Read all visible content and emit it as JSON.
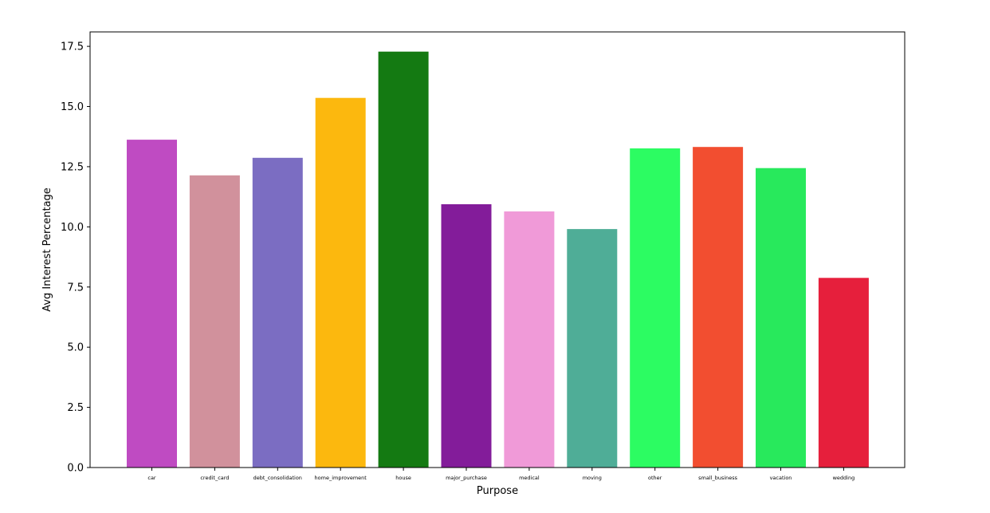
{
  "chart_data": {
    "type": "bar",
    "title": "",
    "xlabel": "Purpose",
    "ylabel": "Avg Interest Percentage",
    "ylim": [
      0,
      18.1
    ],
    "yticks": [
      0.0,
      2.5,
      5.0,
      7.5,
      10.0,
      12.5,
      15.0,
      17.5
    ],
    "ytick_labels": [
      "0.0",
      "2.5",
      "5.0",
      "7.5",
      "10.0",
      "12.5",
      "15.0",
      "17.5"
    ],
    "grid": false,
    "categories": [
      "car",
      "credit_card",
      "debt_consolidation",
      "home_improvement",
      "house",
      "major_purchase",
      "medical",
      "moving",
      "other",
      "small_business",
      "vacation",
      "wedding"
    ],
    "values": [
      13.62,
      12.14,
      12.87,
      15.36,
      17.28,
      10.94,
      10.64,
      9.91,
      13.26,
      13.32,
      12.44,
      7.88
    ],
    "colors": [
      "#bf4bc2",
      "#d1919c",
      "#7b6dc2",
      "#fcb80e",
      "#147a12",
      "#831c9a",
      "#f09ad8",
      "#4fad97",
      "#2cfc62",
      "#f24e30",
      "#28e95c",
      "#e61f3c"
    ]
  }
}
